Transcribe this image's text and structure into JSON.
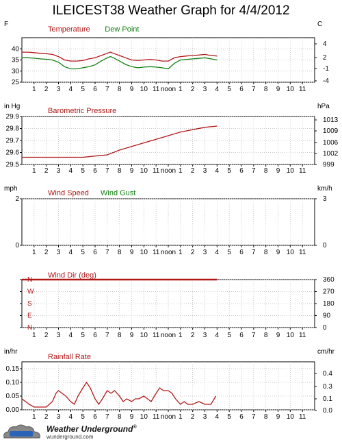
{
  "title": "ILEICEST38 Weather Graph for 4/4/2012",
  "hour_labels": [
    "1",
    "2",
    "3",
    "4",
    "5",
    "6",
    "7",
    "8",
    "9",
    "10",
    "11",
    "noon",
    "1",
    "2",
    "3",
    "4",
    "5",
    "6",
    "7",
    "8",
    "9",
    "10",
    "11"
  ],
  "footer": {
    "logo_text": "Weather Underground",
    "logo_mark": "®",
    "url": "wunderground.com"
  },
  "colors": {
    "red": "#b01818",
    "green": "#108010",
    "grid": "#bbbbbb",
    "frame": "#000000"
  },
  "chart_data": [
    {
      "type": "line",
      "left_unit": "F",
      "right_unit": "C",
      "xlim": [
        0,
        24
      ],
      "ylim": [
        25,
        45
      ],
      "y_ticks": [
        "40",
        "35",
        "30",
        "25"
      ],
      "right_ticks": [
        "4",
        "2",
        "-1",
        "-4"
      ],
      "series": [
        {
          "name": "Temperature",
          "color": "#b01818",
          "x": [
            0,
            0.5,
            1,
            1.5,
            2,
            2.5,
            3,
            3.5,
            4,
            4.5,
            5,
            5.5,
            6,
            6.5,
            7,
            7.25,
            7.5,
            8,
            8.5,
            9,
            9.5,
            10,
            10.5,
            11,
            11.5,
            12,
            12.5,
            13,
            13.5,
            14,
            14.5,
            15,
            15.5,
            16
          ],
          "y": [
            38.5,
            38.5,
            38.3,
            38,
            37.8,
            37.5,
            36.5,
            35,
            34.5,
            34.5,
            34.8,
            35.5,
            36,
            37,
            38,
            38.5,
            38,
            37,
            36,
            35,
            34.8,
            35,
            35.2,
            35,
            34.5,
            34.5,
            36,
            36.5,
            36.8,
            37,
            37.2,
            37.5,
            37,
            36.8
          ]
        },
        {
          "name": "Dew Point",
          "color": "#108010",
          "x": [
            0,
            0.5,
            1,
            1.5,
            2,
            2.5,
            3,
            3.5,
            4,
            4.5,
            5,
            5.5,
            6,
            6.5,
            7,
            7.25,
            7.5,
            8,
            8.5,
            9,
            9.5,
            10,
            10.5,
            11,
            11.5,
            12,
            12.5,
            13,
            13.5,
            14,
            14.5,
            15,
            15.5,
            16
          ],
          "y": [
            36,
            36,
            35.8,
            35.5,
            35.3,
            35,
            34,
            32,
            31,
            31,
            31.5,
            32,
            32.8,
            34.5,
            36,
            36.5,
            36,
            34.5,
            33,
            32,
            31.5,
            31.8,
            32,
            31.8,
            31.5,
            31,
            33.5,
            35,
            35.2,
            35.5,
            35.7,
            36,
            35.5,
            35
          ]
        }
      ]
    },
    {
      "type": "line",
      "left_unit": "in Hg",
      "right_unit": "hPa",
      "xlim": [
        0,
        24
      ],
      "ylim": [
        29.5,
        29.9
      ],
      "y_ticks": [
        "29.9",
        "29.8",
        "29.7",
        "29.6",
        "29.5"
      ],
      "right_ticks": [
        "1013",
        "1009",
        "1006",
        "1002",
        "999"
      ],
      "series": [
        {
          "name": "Barometric Pressure",
          "color": "#b01818",
          "x": [
            0,
            1,
            2,
            3,
            4,
            5,
            6,
            7,
            8,
            9,
            10,
            11,
            12,
            13,
            14,
            15,
            16
          ],
          "y": [
            29.56,
            29.56,
            29.56,
            29.56,
            29.56,
            29.56,
            29.57,
            29.58,
            29.62,
            29.65,
            29.68,
            29.71,
            29.74,
            29.77,
            29.79,
            29.81,
            29.82
          ]
        }
      ]
    },
    {
      "type": "line",
      "left_unit": "mph",
      "right_unit": "km/h",
      "xlim": [
        0,
        24
      ],
      "ylim": [
        0,
        2
      ],
      "y_ticks": [
        "2",
        "0"
      ],
      "right_ticks": [
        "3",
        "0"
      ],
      "series": [
        {
          "name": "Wind Speed",
          "color": "#b01818",
          "x": [],
          "y": []
        },
        {
          "name": "Wind Gust",
          "color": "#108010",
          "x": [],
          "y": []
        }
      ]
    },
    {
      "type": "line",
      "left_unit": "",
      "right_unit": "",
      "xlim": [
        0,
        24
      ],
      "ylim": [
        0,
        360
      ],
      "y_ticks": [
        "N",
        "W",
        "S",
        "E",
        "N"
      ],
      "right_ticks": [
        "360",
        "270",
        "180",
        "90",
        "0"
      ],
      "series": [
        {
          "name": "Wind Dir (deg)",
          "color": "#b01818",
          "x": [
            0,
            16
          ],
          "y": [
            360,
            360
          ]
        }
      ]
    },
    {
      "type": "line",
      "left_unit": "in/hr",
      "right_unit": "cm/hr",
      "xlim": [
        0,
        24
      ],
      "ylim": [
        0,
        0.175
      ],
      "y_ticks": [
        "0.15",
        "0.10",
        "0.05",
        "0.00"
      ],
      "right_ticks": [
        "0.4",
        "0.3",
        "0.1",
        "0.0"
      ],
      "series": [
        {
          "name": "Rainfall Rate",
          "color": "#b01818",
          "x": [
            0,
            0.3,
            0.6,
            1,
            1.5,
            2,
            2.5,
            2.8,
            3,
            3.3,
            3.6,
            4,
            4.3,
            4.6,
            5,
            5.3,
            5.6,
            6,
            6.3,
            6.6,
            7,
            7.3,
            7.6,
            8,
            8.3,
            8.6,
            9,
            9.3,
            9.6,
            10,
            10.3,
            10.6,
            11,
            11.3,
            11.6,
            12,
            12.3,
            12.6,
            13,
            13.3,
            13.6,
            14,
            14.5,
            15,
            15.5,
            15.9
          ],
          "y": [
            0.04,
            0.03,
            0.02,
            0.01,
            0.01,
            0.01,
            0.03,
            0.06,
            0.07,
            0.06,
            0.05,
            0.03,
            0.02,
            0.05,
            0.08,
            0.1,
            0.08,
            0.04,
            0.02,
            0.04,
            0.07,
            0.06,
            0.07,
            0.05,
            0.03,
            0.04,
            0.03,
            0.04,
            0.04,
            0.05,
            0.04,
            0.03,
            0.06,
            0.08,
            0.07,
            0.07,
            0.06,
            0.04,
            0.02,
            0.03,
            0.02,
            0.02,
            0.03,
            0.02,
            0.02,
            0.05
          ]
        }
      ]
    }
  ]
}
